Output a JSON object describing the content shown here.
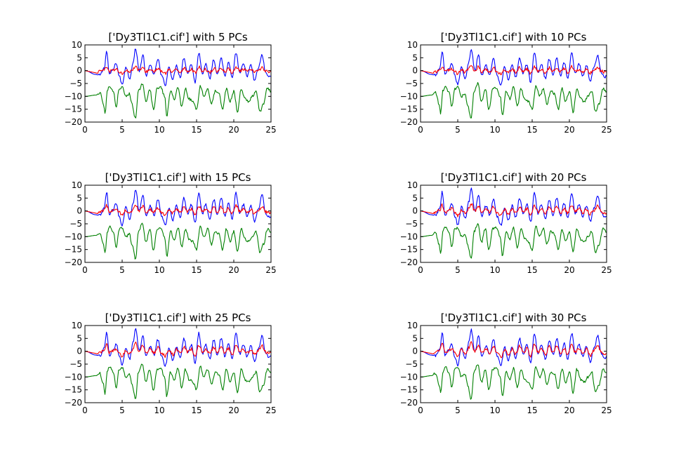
{
  "chart_data": {
    "type": "line",
    "x_range": [
      0,
      25
    ],
    "xticks": [
      0,
      5,
      10,
      15,
      20,
      25
    ],
    "yticks": [
      10,
      5,
      0,
      -5,
      -10,
      -15,
      -20
    ],
    "xlim": [
      0,
      25
    ],
    "ylim": [
      -20,
      10
    ],
    "grid": false,
    "series_colors": {
      "blue": "#0000ff",
      "green": "#008000",
      "red": "#ff0000"
    },
    "panels": [
      {
        "title": "['Dy3Tl1C1.cif'] with 5 PCs",
        "pcs": 5
      },
      {
        "title": "['Dy3Tl1C1.cif'] with 10 PCs",
        "pcs": 10
      },
      {
        "title": "['Dy3Tl1C1.cif'] with 15 PCs",
        "pcs": 15
      },
      {
        "title": "['Dy3Tl1C1.cif'] with 20 PCs",
        "pcs": 20
      },
      {
        "title": "['Dy3Tl1C1.cif'] with 25 PCs",
        "pcs": 25
      },
      {
        "title": "['Dy3Tl1C1.cif'] with 30 PCs",
        "pcs": 30
      }
    ],
    "blue_key_points": [
      [
        0,
        0
      ],
      [
        1.5,
        -1.5
      ],
      [
        2,
        -1.8
      ],
      [
        2.6,
        1
      ],
      [
        2.9,
        7.5
      ],
      [
        3.3,
        -1.5
      ],
      [
        3.8,
        0.5
      ],
      [
        4.2,
        3
      ],
      [
        4.6,
        -2
      ],
      [
        5,
        -5.5
      ],
      [
        5.5,
        1.5
      ],
      [
        6,
        -3
      ],
      [
        6.5,
        3.5
      ],
      [
        6.8,
        8.5
      ],
      [
        7.3,
        0
      ],
      [
        7.8,
        6
      ],
      [
        8.2,
        -2
      ],
      [
        8.8,
        2
      ],
      [
        9.3,
        -1.5
      ],
      [
        9.8,
        4.5
      ],
      [
        10.3,
        -2
      ],
      [
        10.8,
        -5.5
      ],
      [
        11.3,
        1.5
      ],
      [
        11.8,
        -3.5
      ],
      [
        12.3,
        2
      ],
      [
        12.8,
        -2.5
      ],
      [
        13.3,
        5
      ],
      [
        13.8,
        -1
      ],
      [
        14.3,
        2.5
      ],
      [
        14.8,
        -4.5
      ],
      [
        15.3,
        7
      ],
      [
        15.8,
        -1
      ],
      [
        16.2,
        2.5
      ],
      [
        16.8,
        -3
      ],
      [
        17.3,
        4.5
      ],
      [
        17.8,
        -1.5
      ],
      [
        18.3,
        5
      ],
      [
        18.8,
        -2
      ],
      [
        19.3,
        3
      ],
      [
        19.8,
        -3
      ],
      [
        20.3,
        7
      ],
      [
        20.8,
        -1
      ],
      [
        21.3,
        2.5
      ],
      [
        21.8,
        -2
      ],
      [
        22.3,
        2
      ],
      [
        22.8,
        -4
      ],
      [
        23.3,
        1
      ],
      [
        23.8,
        6
      ],
      [
        24.3,
        -1
      ],
      [
        24.8,
        -2.5
      ],
      [
        25,
        -2
      ]
    ],
    "green_key_points": [
      [
        0,
        -10
      ],
      [
        1.5,
        -9.5
      ],
      [
        2,
        -8.5
      ],
      [
        2.5,
        -13
      ],
      [
        2.7,
        -16.5
      ],
      [
        3,
        -8
      ],
      [
        3.3,
        -6
      ],
      [
        3.8,
        -8
      ],
      [
        4.2,
        -14
      ],
      [
        4.6,
        -7
      ],
      [
        5,
        -6.5
      ],
      [
        5.5,
        -10
      ],
      [
        6,
        -9
      ],
      [
        6.3,
        -13
      ],
      [
        6.8,
        -18.5
      ],
      [
        7.2,
        -8
      ],
      [
        7.7,
        -5
      ],
      [
        8.2,
        -12
      ],
      [
        8.7,
        -7
      ],
      [
        9.2,
        -15
      ],
      [
        9.7,
        -7
      ],
      [
        10.2,
        -6.5
      ],
      [
        10.7,
        -10
      ],
      [
        11,
        -17.5
      ],
      [
        11.5,
        -8
      ],
      [
        12,
        -11
      ],
      [
        12.5,
        -6.5
      ],
      [
        13,
        -14
      ],
      [
        13.5,
        -7
      ],
      [
        14,
        -11
      ],
      [
        14.5,
        -12
      ],
      [
        15,
        -15
      ],
      [
        15.5,
        -6
      ],
      [
        16,
        -10
      ],
      [
        16.5,
        -7
      ],
      [
        17,
        -13
      ],
      [
        17.5,
        -8
      ],
      [
        18,
        -9
      ],
      [
        18.5,
        -15
      ],
      [
        19,
        -7
      ],
      [
        19.5,
        -12
      ],
      [
        20,
        -8
      ],
      [
        20.5,
        -16
      ],
      [
        21,
        -7
      ],
      [
        21.5,
        -11
      ],
      [
        22,
        -12
      ],
      [
        22.5,
        -10
      ],
      [
        23,
        -8
      ],
      [
        23.5,
        -16
      ],
      [
        24,
        -13
      ],
      [
        24.5,
        -7
      ],
      [
        25,
        -8
      ]
    ]
  }
}
